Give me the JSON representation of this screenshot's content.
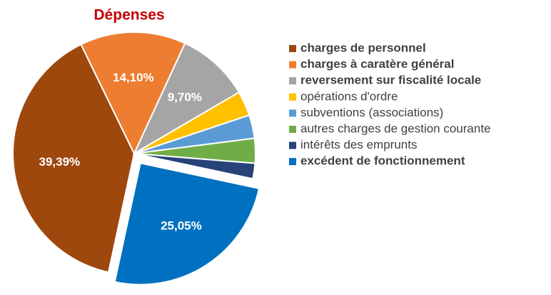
{
  "chart_data": {
    "type": "pie",
    "title": "Dépenses",
    "categories": [
      "charges de personnel",
      "charges à caratère général",
      "reversement sur fiscalité locale",
      "opérations d'ordre",
      "subventions (associations)",
      "autres charges de gestion courante",
      "intérêts des emprunts",
      "excédent de fonctionnement"
    ],
    "values": [
      39.39,
      14.1,
      9.7,
      3.3,
      3.1,
      3.3,
      2.06,
      25.05
    ],
    "value_labels": [
      "39,39%",
      "14,10%",
      "9,70%",
      null,
      null,
      null,
      null,
      "25,05%"
    ],
    "colors": [
      "#9e480e",
      "#ed7d31",
      "#a5a5a5",
      "#ffc000",
      "#5b9bd5",
      "#70ad47",
      "#264478",
      "#0070c0"
    ],
    "legend": "right"
  }
}
